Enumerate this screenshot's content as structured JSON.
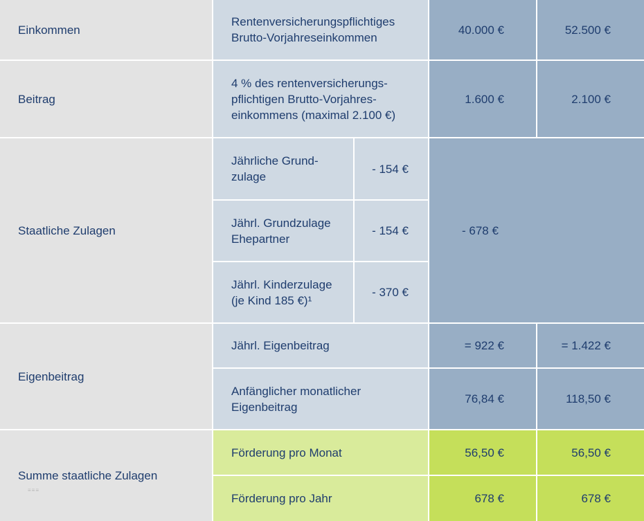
{
  "rows": {
    "einkommen": {
      "label": "Einkommen",
      "description": "Rentenversicherungspflichtiges\nBrutto-Vorjahreseinkommen",
      "value1": "40.000 €",
      "value2": "52.500 €"
    },
    "beitrag": {
      "label": "Beitrag",
      "description": "4 % des rentenversicherungs-\npflichtigen Brutto-Vorjahres-\neinkommens (maximal 2.100 €)",
      "value1": "1.600  €",
      "value2": "2.100 €"
    },
    "zulagen": {
      "label": "Staatliche Zulagen",
      "items": [
        {
          "label": "Jährliche Grund-\nzulage",
          "value": "- 154 €"
        },
        {
          "label": "Jährl. Grundzulage\nEhepartner",
          "value": "- 154 €"
        },
        {
          "label": "Jährl. Kinderzulage\n(je Kind 185 €)¹",
          "value": "- 370 €"
        }
      ],
      "total": "- 678  €"
    },
    "eigenbeitrag": {
      "label": "Eigenbeitrag",
      "items": [
        {
          "label": "Jährl. Eigenbeitrag",
          "value1": "= 922 €",
          "value2": "= 1.422 €"
        },
        {
          "label": "Anfänglicher monatlicher\nEigenbeitrag",
          "value1": "76,84 €",
          "value2": "118,50 €"
        }
      ]
    },
    "summe": {
      "label": "Summe staatliche Zulagen",
      "items": [
        {
          "label": "Förderung pro Monat",
          "value1": "56,50 €",
          "value2": "56,50 €"
        },
        {
          "label": "Förderung pro Jahr",
          "value1": "678 €",
          "value2": "678 €"
        }
      ]
    }
  },
  "colors": {
    "label_bg": "#e3e3e3",
    "description_bg": "#cfd9e3",
    "value_bg": "#98aec5",
    "green_light": "#d9eb9b",
    "green_dark": "#c5df5a",
    "text": "#1f3d6e"
  }
}
